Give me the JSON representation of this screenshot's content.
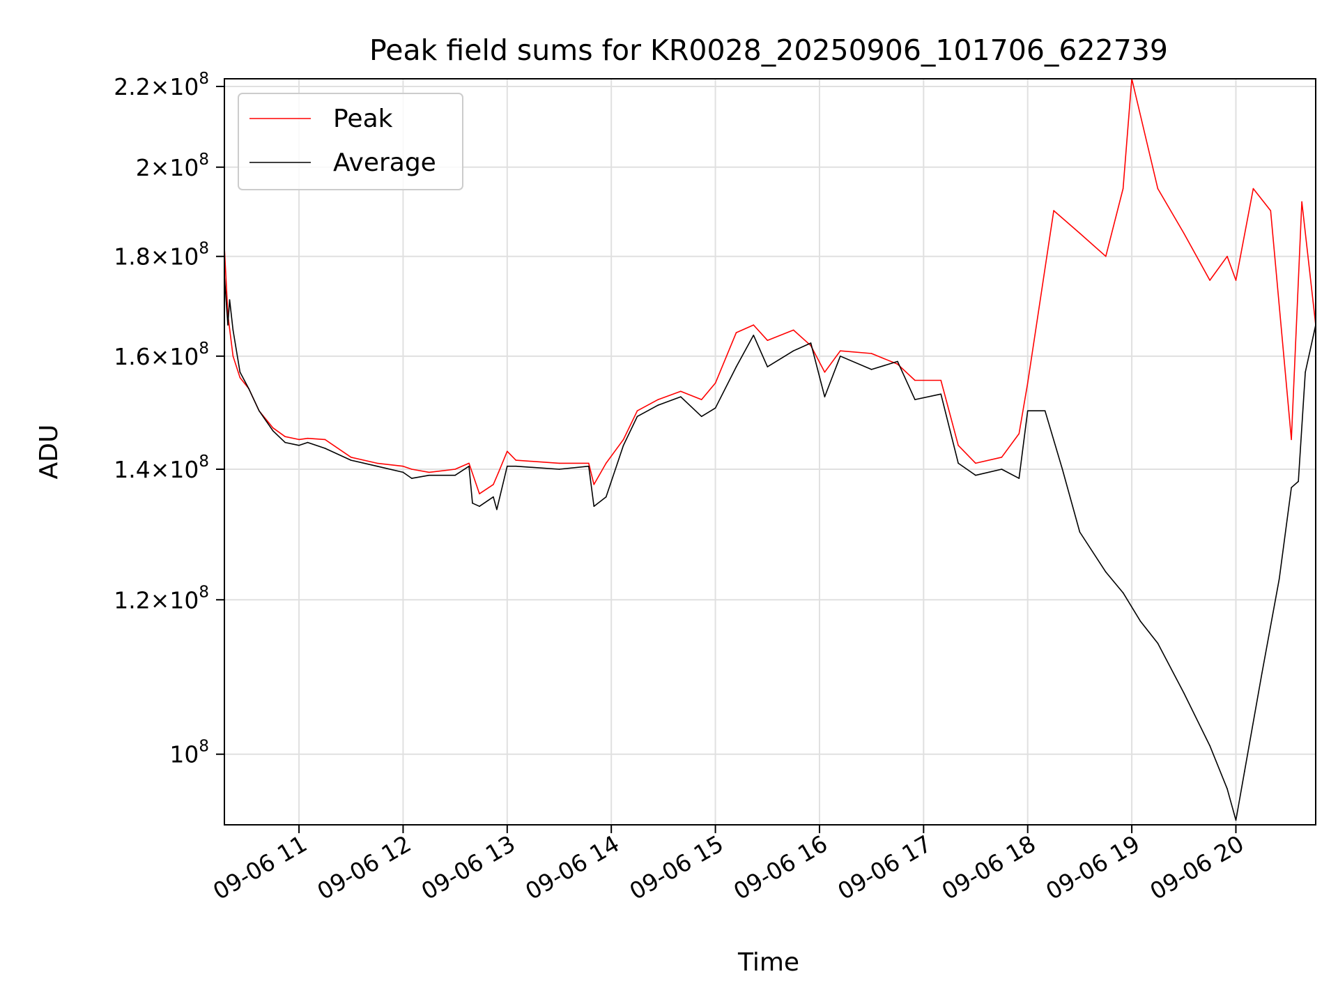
{
  "chart_data": {
    "type": "line",
    "title": "Peak field sums for KR0028_20250906_101706_622739",
    "xlabel": "Time",
    "ylabel": "ADU",
    "y_scale": "log",
    "ylim": [
      92000000,
      222000000
    ],
    "xlim": [
      "09-06 10:17",
      "09-06 20:46"
    ],
    "grid": true,
    "legend_position": "top-left",
    "x_tick_labels": [
      "09-06 11",
      "09-06 12",
      "09-06 13",
      "09-06 14",
      "09-06 15",
      "09-06 16",
      "09-06 17",
      "09-06 18",
      "09-06 19",
      "09-06 20"
    ],
    "y_ticks": [
      {
        "value": 100000000,
        "mantissa": "",
        "exponent": "8"
      },
      {
        "value": 120000000,
        "mantissa": "1.2",
        "exponent": "8"
      },
      {
        "value": 140000000,
        "mantissa": "1.4",
        "exponent": "8"
      },
      {
        "value": 160000000,
        "mantissa": "1.6",
        "exponent": "8"
      },
      {
        "value": 180000000,
        "mantissa": "1.8",
        "exponent": "8"
      },
      {
        "value": 200000000,
        "mantissa": "2",
        "exponent": "8"
      },
      {
        "value": 220000000,
        "mantissa": "2.2",
        "exponent": "8"
      }
    ],
    "series": [
      {
        "name": "Peak",
        "color": "#ff0000",
        "x": [
          "09-06 10:17",
          "09-06 10:19",
          "09-06 10:22",
          "09-06 10:26",
          "09-06 10:31",
          "09-06 10:37",
          "09-06 10:45",
          "09-06 10:52",
          "09-06 11:00",
          "09-06 11:05",
          "09-06 11:15",
          "09-06 11:30",
          "09-06 11:45",
          "09-06 12:00",
          "09-06 12:05",
          "09-06 12:15",
          "09-06 12:30",
          "09-06 12:38",
          "09-06 12:44",
          "09-06 12:52",
          "09-06 12:55",
          "09-06 13:00",
          "09-06 13:05",
          "09-06 13:30",
          "09-06 13:47",
          "09-06 13:50",
          "09-06 13:57",
          "09-06 14:07",
          "09-06 14:15",
          "09-06 14:27",
          "09-06 14:40",
          "09-06 14:52",
          "09-06 15:00",
          "09-06 15:12",
          "09-06 15:22",
          "09-06 15:30",
          "09-06 15:45",
          "09-06 15:55",
          "09-06 16:03",
          "09-06 16:12",
          "09-06 16:30",
          "09-06 16:45",
          "09-06 16:55",
          "09-06 17:10",
          "09-06 17:20",
          "09-06 17:30",
          "09-06 17:45",
          "09-06 17:55",
          "09-06 18:00",
          "09-06 18:15",
          "09-06 18:30",
          "09-06 18:45",
          "09-06 18:55",
          "09-06 19:00",
          "09-06 19:15",
          "09-06 19:30",
          "09-06 19:45",
          "09-06 19:55",
          "09-06 20:00",
          "09-06 20:10",
          "09-06 20:20",
          "09-06 20:32",
          "09-06 20:38",
          "09-06 20:46"
        ],
        "values": [
          182000000,
          168000000,
          160000000,
          156000000,
          154000000,
          150000000,
          147000000,
          145500000,
          145000000,
          145200000,
          145000000,
          142000000,
          141000000,
          140500000,
          140000000,
          139500000,
          140000000,
          141000000,
          136000000,
          137500000,
          139500000,
          143000000,
          141500000,
          141000000,
          141000000,
          137500000,
          141000000,
          145000000,
          150000000,
          152000000,
          153500000,
          152000000,
          155000000,
          164500000,
          166000000,
          163000000,
          165000000,
          162000000,
          157000000,
          161000000,
          160500000,
          158500000,
          155500000,
          155500000,
          144000000,
          141000000,
          142000000,
          146000000,
          155000000,
          190000000,
          185000000,
          180000000,
          195000000,
          222000000,
          195000000,
          185000000,
          175000000,
          180000000,
          175000000,
          195000000,
          190000000,
          145000000,
          192000000,
          166000000
        ]
      },
      {
        "name": "Average",
        "color": "#000000",
        "x": [
          "09-06 10:17",
          "09-06 10:19",
          "09-06 10:20",
          "09-06 10:22",
          "09-06 10:26",
          "09-06 10:31",
          "09-06 10:37",
          "09-06 10:45",
          "09-06 10:52",
          "09-06 11:00",
          "09-06 11:05",
          "09-06 11:15",
          "09-06 11:30",
          "09-06 11:45",
          "09-06 12:00",
          "09-06 12:05",
          "09-06 12:15",
          "09-06 12:30",
          "09-06 12:38",
          "09-06 12:40",
          "09-06 12:44",
          "09-06 12:52",
          "09-06 12:54",
          "09-06 13:00",
          "09-06 13:05",
          "09-06 13:30",
          "09-06 13:47",
          "09-06 13:50",
          "09-06 13:57",
          "09-06 14:07",
          "09-06 14:15",
          "09-06 14:27",
          "09-06 14:40",
          "09-06 14:52",
          "09-06 15:00",
          "09-06 15:12",
          "09-06 15:22",
          "09-06 15:30",
          "09-06 15:45",
          "09-06 15:55",
          "09-06 16:03",
          "09-06 16:12",
          "09-06 16:30",
          "09-06 16:45",
          "09-06 16:55",
          "09-06 17:10",
          "09-06 17:20",
          "09-06 17:30",
          "09-06 17:45",
          "09-06 17:55",
          "09-06 18:00",
          "09-06 18:10",
          "09-06 18:20",
          "09-06 18:30",
          "09-06 18:45",
          "09-06 18:55",
          "09-06 19:05",
          "09-06 19:15",
          "09-06 19:30",
          "09-06 19:45",
          "09-06 19:55",
          "09-06 20:00",
          "09-06 20:05",
          "09-06 20:15",
          "09-06 20:25",
          "09-06 20:32",
          "09-06 20:36",
          "09-06 20:40",
          "09-06 20:46"
        ],
        "values": [
          176000000,
          166000000,
          171000000,
          165000000,
          157000000,
          154000000,
          150000000,
          146500000,
          144500000,
          144000000,
          144500000,
          143500000,
          141500000,
          140500000,
          139500000,
          138500000,
          139000000,
          139000000,
          140500000,
          134500000,
          134000000,
          135500000,
          133500000,
          140500000,
          140500000,
          140000000,
          140500000,
          134000000,
          135500000,
          144000000,
          149000000,
          151000000,
          152500000,
          149000000,
          150500000,
          158000000,
          164000000,
          158000000,
          161000000,
          162500000,
          152500000,
          160000000,
          157500000,
          159000000,
          152000000,
          153000000,
          141000000,
          139000000,
          140000000,
          138500000,
          150000000,
          150000000,
          140000000,
          130000000,
          124000000,
          121000000,
          117000000,
          114000000,
          107500000,
          101000000,
          96000000,
          92500000,
          98000000,
          110000000,
          123000000,
          137000000,
          138000000,
          157000000,
          166000000
        ]
      }
    ]
  },
  "legend": {
    "items": [
      {
        "label": "Peak",
        "color": "#ff0000"
      },
      {
        "label": "Average",
        "color": "#000000"
      }
    ]
  }
}
